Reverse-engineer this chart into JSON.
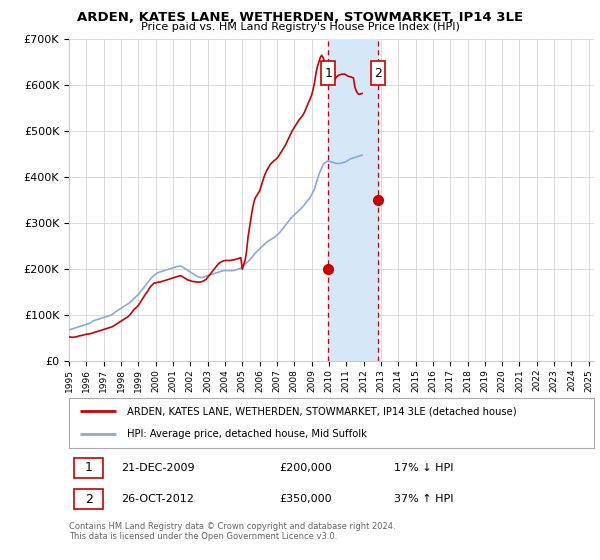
{
  "title": "ARDEN, KATES LANE, WETHERDEN, STOWMARKET, IP14 3LE",
  "subtitle": "Price paid vs. HM Land Registry's House Price Index (HPI)",
  "legend_line1": "ARDEN, KATES LANE, WETHERDEN, STOWMARKET, IP14 3LE (detached house)",
  "legend_line2": "HPI: Average price, detached house, Mid Suffolk",
  "footnote1": "Contains HM Land Registry data © Crown copyright and database right 2024.",
  "footnote2": "This data is licensed under the Open Government Licence v3.0.",
  "transaction1_date": "21-DEC-2009",
  "transaction1_price": "£200,000",
  "transaction1_hpi": "17% ↓ HPI",
  "transaction2_date": "26-OCT-2012",
  "transaction2_price": "£350,000",
  "transaction2_hpi": "37% ↑ HPI",
  "transaction1_year": 2009.97,
  "transaction1_value": 200000,
  "transaction2_year": 2012.82,
  "transaction2_value": 350000,
  "ylim_min": 0,
  "ylim_max": 700000,
  "xlim_min": 1995.0,
  "xlim_max": 2025.3,
  "red_color": "#cc0000",
  "blue_color": "#88aadd",
  "shading_color": "#d6e8f7",
  "background_color": "#ffffff",
  "grid_color": "#cccccc",
  "hpi_values_monthly": [
    68000,
    69000,
    70000,
    71000,
    72000,
    73000,
    74000,
    75000,
    76000,
    77000,
    78000,
    79000,
    80000,
    81000,
    82000,
    84000,
    86000,
    88000,
    89000,
    90000,
    91000,
    92000,
    93000,
    94000,
    95000,
    96000,
    97000,
    98000,
    99000,
    100000,
    102000,
    104000,
    107000,
    109000,
    111000,
    113000,
    115000,
    117000,
    119000,
    121000,
    123000,
    125000,
    127000,
    130000,
    133000,
    136000,
    139000,
    142000,
    145000,
    149000,
    153000,
    157000,
    161000,
    165000,
    169000,
    173000,
    177000,
    181000,
    184000,
    187000,
    189000,
    191000,
    193000,
    194000,
    195000,
    196000,
    197000,
    198000,
    199000,
    200000,
    201000,
    202000,
    203000,
    204000,
    205000,
    206000,
    206000,
    207000,
    206000,
    204000,
    202000,
    200000,
    198000,
    196000,
    194000,
    192000,
    190000,
    188000,
    186000,
    184000,
    183000,
    182000,
    182000,
    183000,
    184000,
    185000,
    186000,
    187000,
    188000,
    189000,
    190000,
    191000,
    192000,
    193000,
    194000,
    195000,
    196000,
    197000,
    197000,
    197000,
    197000,
    197000,
    197000,
    197000,
    197000,
    198000,
    199000,
    200000,
    201000,
    202000,
    205000,
    208000,
    211000,
    214000,
    217000,
    220000,
    223000,
    227000,
    231000,
    235000,
    238000,
    241000,
    244000,
    247000,
    250000,
    253000,
    256000,
    259000,
    261000,
    263000,
    265000,
    267000,
    269000,
    271000,
    274000,
    277000,
    280000,
    284000,
    288000,
    292000,
    296000,
    300000,
    304000,
    308000,
    312000,
    315000,
    318000,
    321000,
    324000,
    327000,
    330000,
    333000,
    336000,
    340000,
    344000,
    348000,
    352000,
    356000,
    362000,
    368000,
    374000,
    385000,
    395000,
    405000,
    413000,
    420000,
    427000,
    431000,
    433000,
    435000,
    435000,
    434000,
    433000,
    432000,
    431000,
    430000,
    430000,
    430000,
    430000,
    431000,
    432000,
    433000,
    434000,
    436000,
    438000,
    440000,
    441000,
    442000,
    443000,
    444000,
    445000,
    446000,
    447000,
    448000
  ],
  "price_values_monthly": [
    53000,
    52500,
    52000,
    52000,
    52500,
    53000,
    54000,
    55000,
    55500,
    56000,
    57000,
    58000,
    58500,
    59000,
    59500,
    60000,
    61000,
    62000,
    63000,
    64000,
    65000,
    66000,
    67000,
    68000,
    69000,
    70000,
    71000,
    72000,
    73000,
    74000,
    75000,
    77000,
    79000,
    81000,
    83000,
    85000,
    87000,
    89000,
    91000,
    93000,
    95000,
    97000,
    100000,
    104000,
    108000,
    112000,
    115000,
    118000,
    121000,
    126000,
    131000,
    136000,
    141000,
    146000,
    150000,
    155000,
    160000,
    164000,
    167000,
    170000,
    170000,
    171000,
    172000,
    172000,
    173000,
    174000,
    175000,
    176000,
    177000,
    178000,
    179000,
    180000,
    181000,
    182000,
    183000,
    184000,
    185000,
    186000,
    185000,
    183000,
    181000,
    179000,
    177000,
    176000,
    175000,
    174000,
    173000,
    173000,
    172000,
    172000,
    172000,
    172000,
    173000,
    174000,
    176000,
    178000,
    182000,
    186000,
    190000,
    194000,
    198000,
    202000,
    206000,
    210000,
    213000,
    215000,
    217000,
    218000,
    219000,
    219000,
    219000,
    219000,
    219000,
    220000,
    220000,
    221000,
    222000,
    223000,
    224000,
    225000,
    200000,
    210000,
    220000,
    240000,
    270000,
    290000,
    310000,
    330000,
    345000,
    355000,
    360000,
    365000,
    370000,
    380000,
    390000,
    400000,
    408000,
    415000,
    420000,
    426000,
    430000,
    433000,
    436000,
    438000,
    441000,
    445000,
    450000,
    455000,
    460000,
    465000,
    470000,
    477000,
    484000,
    490000,
    497000,
    503000,
    508000,
    513000,
    518000,
    523000,
    527000,
    531000,
    535000,
    541000,
    548000,
    556000,
    563000,
    570000,
    578000,
    590000,
    605000,
    625000,
    640000,
    650000,
    660000,
    665000,
    660000,
    650000,
    640000,
    625000,
    615000,
    608000,
    605000,
    608000,
    612000,
    617000,
    620000,
    622000,
    623000,
    624000,
    624000,
    624000,
    622000,
    620000,
    619000,
    618000,
    617000,
    616000,
    596000,
    587000,
    582000,
    580000,
    581000,
    582000
  ]
}
